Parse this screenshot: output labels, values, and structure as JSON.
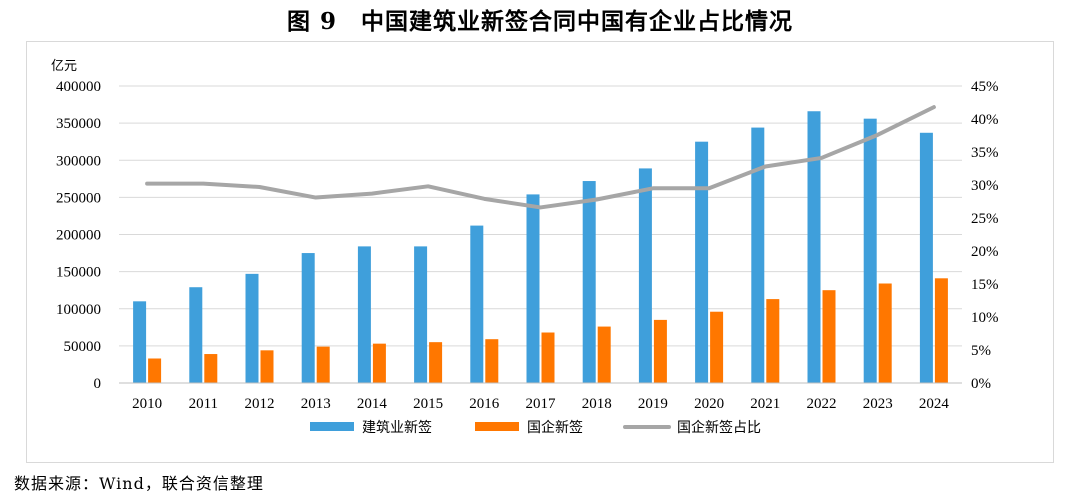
{
  "figure": {
    "title": "图 9　中国建筑业新签合同中国有企业占比情况",
    "source": "数据来源：Wind，联合资信整理"
  },
  "chart_data": {
    "type": "bar",
    "categories": [
      "2010",
      "2011",
      "2012",
      "2013",
      "2014",
      "2015",
      "2016",
      "2017",
      "2018",
      "2019",
      "2020",
      "2021",
      "2022",
      "2023",
      "2024"
    ],
    "series": [
      {
        "name": "建筑业新签",
        "type": "bar",
        "axis": "left",
        "color": "#3f9fdb",
        "values": [
          110000,
          129000,
          147000,
          175000,
          184000,
          184000,
          212000,
          254000,
          272000,
          289000,
          325000,
          344000,
          366000,
          356000,
          337000
        ]
      },
      {
        "name": "国企新签",
        "type": "bar",
        "axis": "left",
        "color": "#ff7700",
        "values": [
          33000,
          39000,
          44000,
          49000,
          53000,
          55000,
          59000,
          68000,
          76000,
          85000,
          96000,
          113000,
          125000,
          134000,
          141000
        ]
      },
      {
        "name": "国企新签占比",
        "type": "line",
        "axis": "right",
        "color": "#a6a6a6",
        "values": [
          30.2,
          30.2,
          29.7,
          28.1,
          28.7,
          29.8,
          27.9,
          26.6,
          27.8,
          29.5,
          29.5,
          32.8,
          34.1,
          37.6,
          41.8
        ]
      }
    ],
    "ylabel": "亿元",
    "ylim": [
      0,
      400000
    ],
    "yticks": [
      "0",
      "50000",
      "100000",
      "150000",
      "200000",
      "250000",
      "300000",
      "350000",
      "400000"
    ],
    "y2lim": [
      0,
      45
    ],
    "y2ticks": [
      "0%",
      "5%",
      "10%",
      "15%",
      "20%",
      "25%",
      "30%",
      "35%",
      "40%",
      "45%"
    ],
    "grid": true,
    "legend": "bottom"
  }
}
